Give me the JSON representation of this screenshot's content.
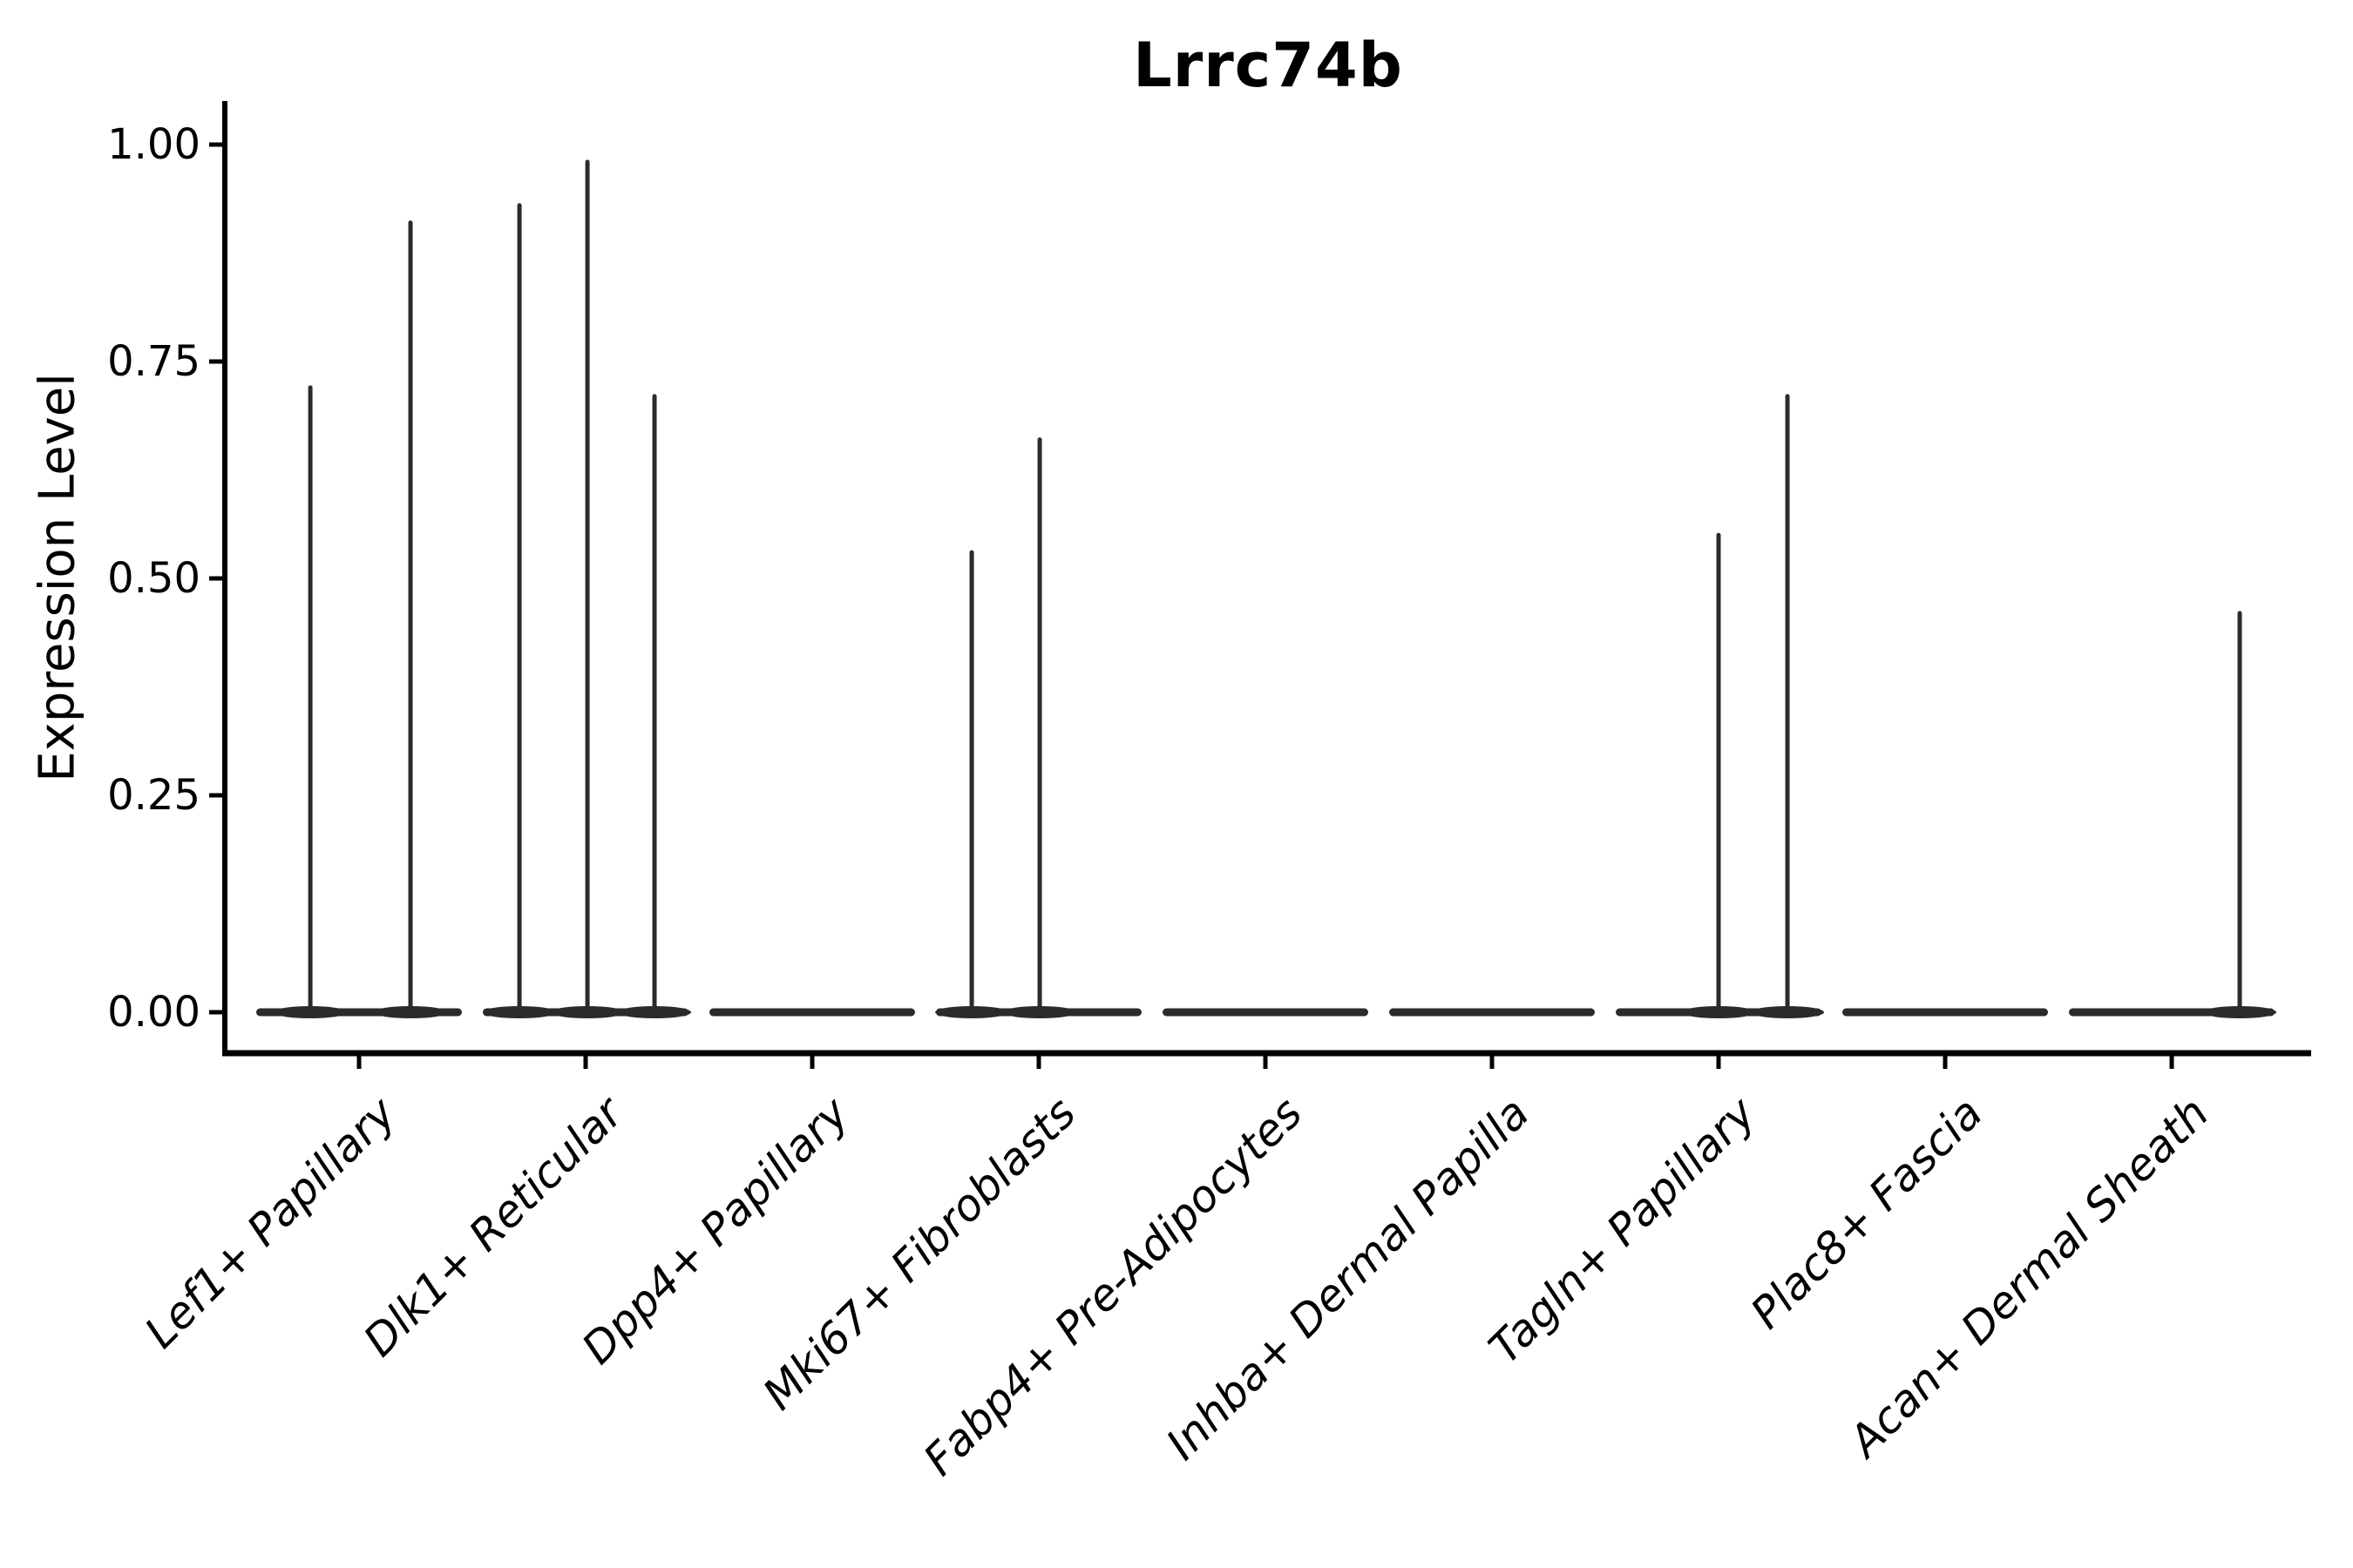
{
  "title": "Lrrc74b",
  "chart_data": {
    "type": "violin",
    "title": "Lrrc74b",
    "subtitle": "",
    "xlabel": "",
    "ylabel": "Expression Level",
    "ylim": [
      -0.05,
      1.05
    ],
    "grid": false,
    "legend": "none",
    "yticks": [
      {
        "value": 0.0,
        "label": "0.00"
      },
      {
        "value": 0.25,
        "label": "0.25"
      },
      {
        "value": 0.5,
        "label": "0.50"
      },
      {
        "value": 0.75,
        "label": "0.75"
      },
      {
        "value": 1.0,
        "label": "1.00"
      }
    ],
    "colors": {
      "violin": "#2b2b2b",
      "axis": "#000000",
      "text": "#000000",
      "background": "#ffffff"
    },
    "categories": [
      {
        "label": "Lef1+ Papillary",
        "baseline": 0,
        "spikes": [
          {
            "offset": -0.215,
            "value": 0.72
          },
          {
            "offset": 0.227,
            "value": 0.91
          }
        ]
      },
      {
        "label": "Dlk1+ Reticular",
        "baseline": 0,
        "spikes": [
          {
            "offset": -0.292,
            "value": 0.93
          },
          {
            "offset": 0.008,
            "value": 0.98
          },
          {
            "offset": 0.304,
            "value": 0.71
          }
        ]
      },
      {
        "label": "Dpp4+ Papillary",
        "baseline": 0,
        "spikes": []
      },
      {
        "label": "Mki67+ Fibroblasts",
        "baseline": 0,
        "spikes": [
          {
            "offset": -0.296,
            "value": 0.53
          },
          {
            "offset": 0.004,
            "value": 0.66
          }
        ]
      },
      {
        "label": "Fabp4+ Pre-Adipocytes",
        "baseline": 0,
        "spikes": []
      },
      {
        "label": "Inhba+ Dermal Papilla",
        "baseline": 0,
        "spikes": []
      },
      {
        "label": "Tagln+ Papillary",
        "baseline": 0,
        "spikes": [
          {
            "offset": 0.0,
            "value": 0.55
          },
          {
            "offset": 0.304,
            "value": 0.71
          }
        ]
      },
      {
        "label": "Plac8+ Fascia",
        "baseline": 0,
        "spikes": []
      },
      {
        "label": "Acan+ Dermal Sheath",
        "baseline": 0,
        "spikes": [
          {
            "offset": 0.3,
            "value": 0.46
          }
        ]
      }
    ]
  }
}
